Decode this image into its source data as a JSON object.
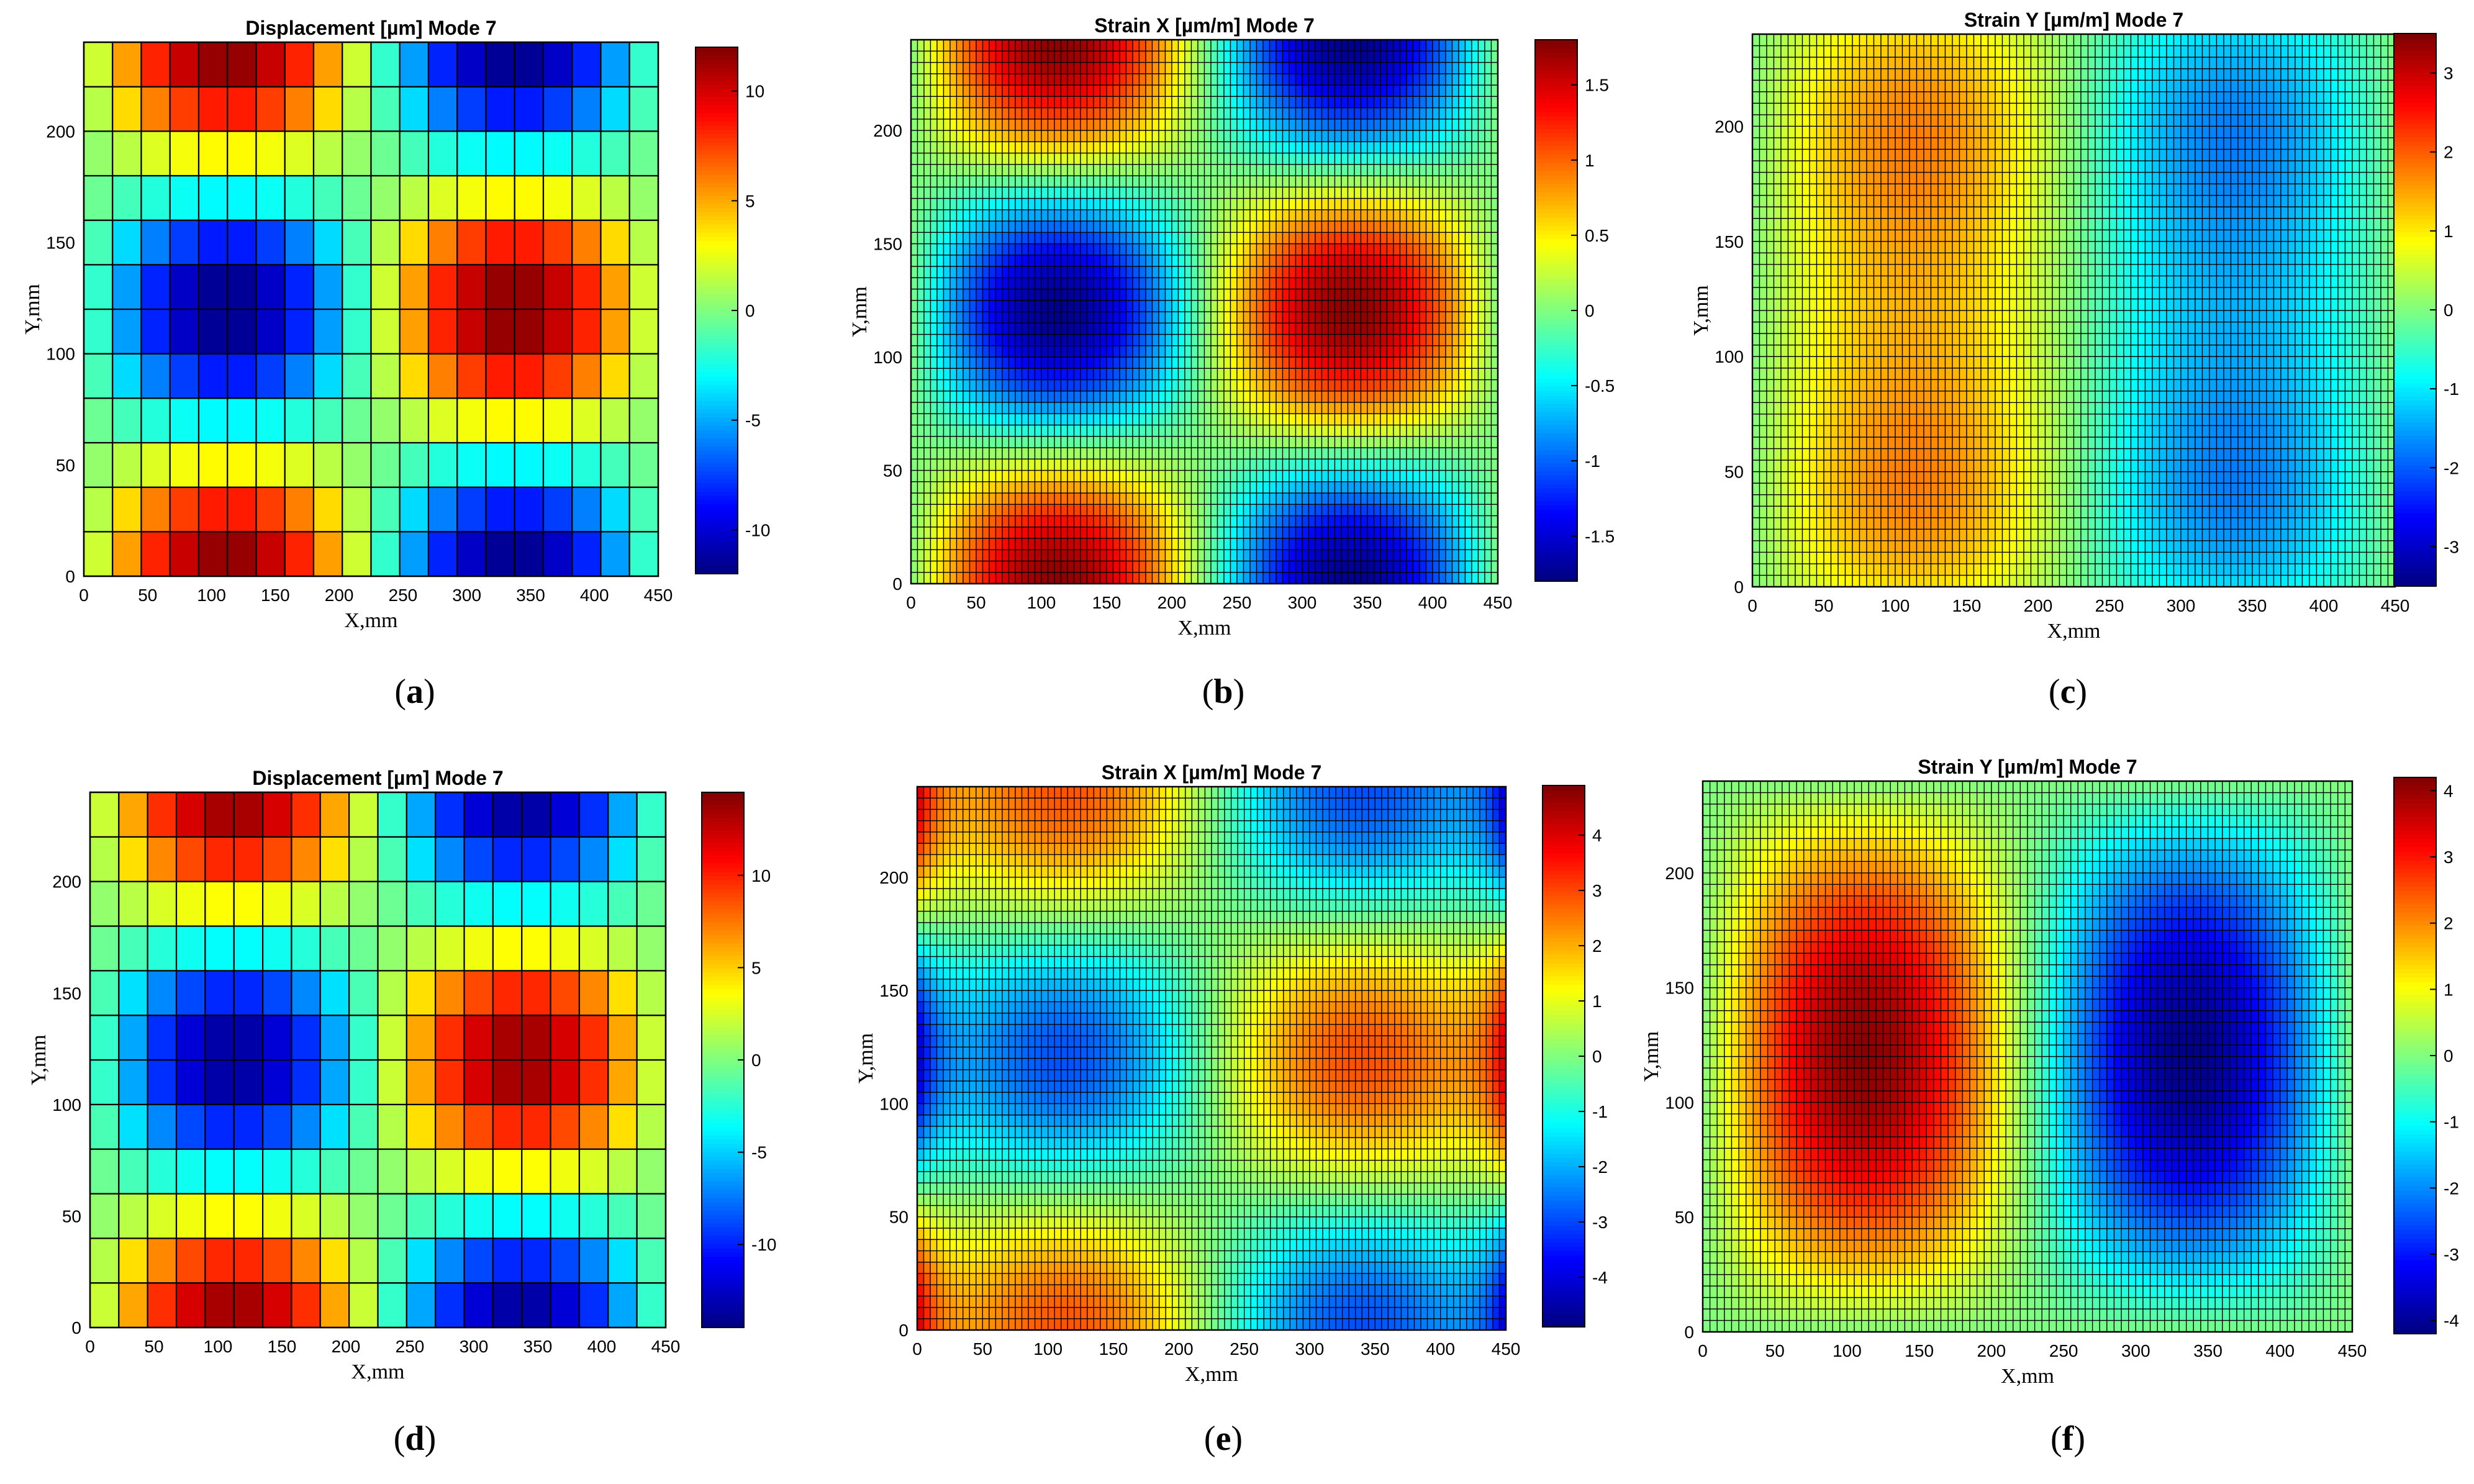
{
  "chart_data": [
    {
      "panel": "(a)",
      "caption_letter": "a",
      "type": "heatmap",
      "quantity": "displacement",
      "title": "Displacement [µm] Mode 7",
      "xlabel": "X,mm",
      "ylabel": "Y,mm",
      "xlim": [
        0,
        450
      ],
      "ylim": [
        0,
        240
      ],
      "xticks": [
        0,
        50,
        100,
        150,
        200,
        250,
        300,
        350,
        400,
        450
      ],
      "yticks": [
        0,
        50,
        100,
        150,
        200
      ],
      "grid": {
        "nx": 20,
        "ny": 12
      },
      "amplitude": 12,
      "clim": [
        -12,
        12
      ],
      "colorbar_ticks": [
        -10,
        -5,
        0,
        5,
        10
      ],
      "colormap": "jet"
    },
    {
      "panel": "(b)",
      "caption_letter": "b",
      "type": "heatmap",
      "quantity": "strain_x",
      "title": "Strain X [µm/m] Mode 7",
      "xlabel": "X,mm",
      "ylabel": "Y,mm",
      "xlim": [
        0,
        450
      ],
      "ylim": [
        0,
        240
      ],
      "xticks": [
        0,
        50,
        100,
        150,
        200,
        250,
        300,
        350,
        400,
        450
      ],
      "yticks": [
        0,
        50,
        100,
        150,
        200
      ],
      "grid": {
        "nx": 90,
        "ny": 48
      },
      "amplitude": 1.75,
      "clim": [
        -1.8,
        1.8
      ],
      "colorbar_ticks": [
        -1.5,
        -1,
        -0.5,
        0,
        0.5,
        1,
        1.5
      ],
      "colormap": "jet"
    },
    {
      "panel": "(c)",
      "caption_letter": "c",
      "type": "heatmap",
      "quantity": "strain_y",
      "title": "Strain Y [µm/m] Mode 7",
      "xlabel": "X,mm",
      "ylabel": "Y,mm",
      "xlim": [
        0,
        450
      ],
      "ylim": [
        0,
        240
      ],
      "xticks": [
        0,
        50,
        100,
        150,
        200,
        250,
        300,
        350,
        400,
        450
      ],
      "yticks": [
        0,
        50,
        100,
        150,
        200
      ],
      "grid": {
        "nx": 90,
        "ny": 48
      },
      "amplitude": 3.5,
      "clim": [
        -3.5,
        3.5
      ],
      "colorbar_ticks": [
        -3,
        -2,
        -1,
        0,
        1,
        2,
        3
      ],
      "colormap": "jet"
    },
    {
      "panel": "(d)",
      "caption_letter": "d",
      "type": "heatmap",
      "quantity": "displacement",
      "title": "Displacement [µm] Mode 7",
      "xlabel": "X,mm",
      "ylabel": "Y,mm",
      "xlim": [
        0,
        450
      ],
      "ylim": [
        0,
        240
      ],
      "xticks": [
        0,
        50,
        100,
        150,
        200,
        250,
        300,
        350,
        400,
        450
      ],
      "yticks": [
        0,
        50,
        100,
        150,
        200
      ],
      "grid": {
        "nx": 20,
        "ny": 12
      },
      "amplitude": 14,
      "clim": [
        -14.5,
        14.5
      ],
      "colorbar_ticks": [
        -10,
        -5,
        0,
        5,
        10
      ],
      "colormap": "jet"
    },
    {
      "panel": "(e)",
      "caption_letter": "e",
      "type": "heatmap",
      "quantity": "strain_x_clamped",
      "title": "Strain X [µm/m] Mode 7",
      "xlabel": "X,mm",
      "ylabel": "Y,mm",
      "xlim": [
        0,
        450
      ],
      "ylim": [
        0,
        240
      ],
      "xticks": [
        0,
        50,
        100,
        150,
        200,
        250,
        300,
        350,
        400,
        450
      ],
      "yticks": [
        0,
        50,
        100,
        150,
        200
      ],
      "grid": {
        "nx": 90,
        "ny": 48
      },
      "amplitude": 4.8,
      "clim": [
        -4.9,
        4.9
      ],
      "colorbar_ticks": [
        -4,
        -3,
        -2,
        -1,
        0,
        1,
        2,
        3,
        4
      ],
      "colormap": "jet"
    },
    {
      "panel": "(f)",
      "caption_letter": "f",
      "type": "heatmap",
      "quantity": "strain_y_clamped",
      "title": "Strain Y [µm/m] Mode 7",
      "xlabel": "X,mm",
      "ylabel": "Y,mm",
      "xlim": [
        0,
        450
      ],
      "ylim": [
        0,
        240
      ],
      "xticks": [
        0,
        50,
        100,
        150,
        200,
        250,
        300,
        350,
        400,
        450
      ],
      "yticks": [
        0,
        50,
        100,
        150,
        200
      ],
      "grid": {
        "nx": 90,
        "ny": 48
      },
      "amplitude": 4.1,
      "clim": [
        -4.2,
        4.2
      ],
      "colorbar_ticks": [
        -4,
        -3,
        -2,
        -1,
        0,
        1,
        2,
        3,
        4
      ],
      "colormap": "jet"
    }
  ]
}
